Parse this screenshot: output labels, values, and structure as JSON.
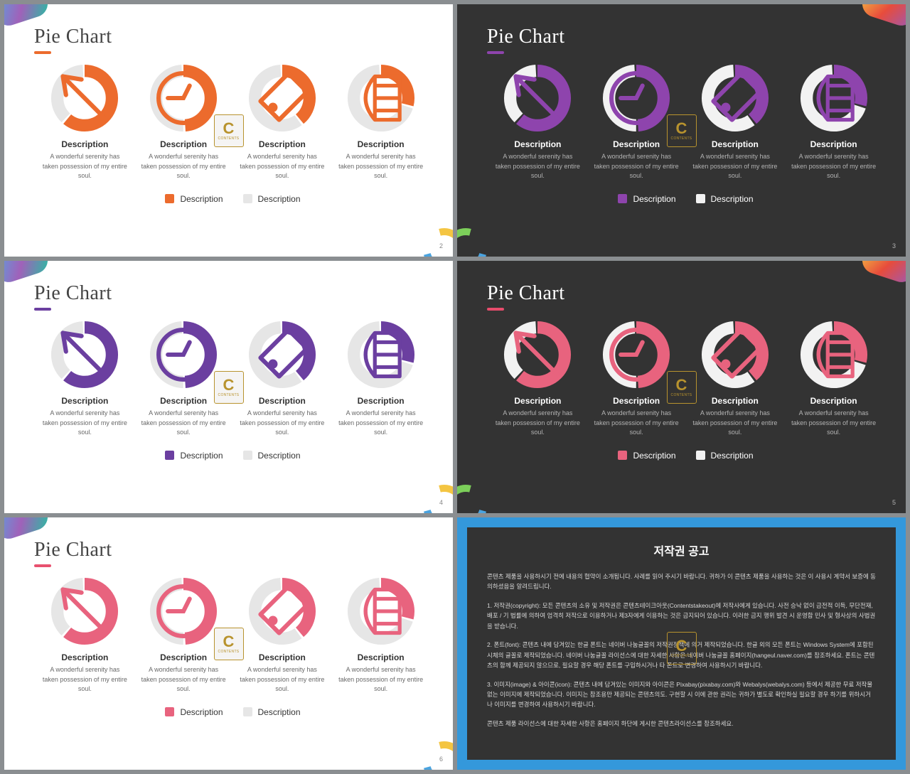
{
  "shared": {
    "title": "Pie Chart",
    "desc_title": "Description",
    "desc_body": "A wonderful serenity has taken possession of my entire soul.",
    "legend_a": "Description",
    "legend_b": "Description",
    "watermark_big": "C",
    "watermark_small": "CONTENTS"
  },
  "donut": {
    "r": 40,
    "stroke_width": 18,
    "gap_deg": 4,
    "fills": [
      0.62,
      0.5,
      0.4,
      0.3
    ],
    "icons": [
      "arrow",
      "clock",
      "tag",
      "store"
    ]
  },
  "slides": [
    {
      "bg": "light",
      "page": "2",
      "accent": "#ec6b2d",
      "primary": "#ec6b2d",
      "secondary": "#e6e6e6",
      "icon_color": "#ec6b2d",
      "ribbons": [
        "tl",
        "br"
      ]
    },
    {
      "bg": "dark",
      "page": "3",
      "accent": "#8e44ad",
      "primary": "#8e44ad",
      "secondary": "#f2f2f2",
      "icon_color": "#8e44ad",
      "ribbons": [
        "tr",
        "bl"
      ]
    },
    {
      "bg": "light",
      "page": "4",
      "accent": "#6b3fa0",
      "primary": "#6b3fa0",
      "secondary": "#e6e6e6",
      "icon_color": "#6b3fa0",
      "ribbons": [
        "tl",
        "br"
      ]
    },
    {
      "bg": "dark",
      "page": "5",
      "accent": "#e74c6c",
      "primary": "#e8637e",
      "secondary": "#f2f2f2",
      "icon_color": "#e8637e",
      "ribbons": [
        "tr",
        "bl"
      ]
    },
    {
      "bg": "light",
      "page": "6",
      "accent": "#e8516f",
      "primary": "#e8637e",
      "secondary": "#e6e6e6",
      "icon_color": "#e8637e",
      "ribbons": [
        "tl",
        "br"
      ]
    }
  ],
  "copyright": {
    "heading": "저작권 공고",
    "paras": [
      "콘텐츠 제품을 사용하시기 전에 내용의 협약이 소개됩니다. 사례를 읽어 주시기 바랍니다. 귀하가 이 콘텐츠 제품을 사용하는 것은 이 사용시 계약서 보증에 동의하셨음을 알려드립니다.",
      "1. 저작권(copyright): 모든 콘텐츠의 소유 및 저작권은 콘텐츠테이크아웃(Contentstakeout)에 저작사에게 있습니다. 사전 승낙 없이 금전적 이득, 무단전재, 배포 / 기 법률에 의하여 엄격히 저작으로 이용하거나 제3자에게 이용하는 것은 금지되어 있습니다. 이러한 금지 행위 발견 시 운영함 민사 및 형사상의 사법권을 받습니다.",
      "2. 폰트(font): 콘텐츠 내에 담겨있는 한글 폰트는 네이버 나눔글꼴의 저작권정책에 의거 제작되었습니다. 한글 외의 모든 폰트는 Windows System에 포함된 시체의 글꼴로 제작되었습니다. 네이버 나눔글꼴 라이선스에 대한 자세한 사항은 네이버 나눔글꼴 홈페이지(hangeul.naver.com)를 참조하세요. 폰트는 콘텐츠의 함께 제공되지 않으므로, 필요할 경우 해당 폰트를 구입하시거나 타 폰트로 변경하여 사용하시기 바랍니다.",
      "3. 이미지(image) & 아이콘(icon): 콘텐츠 내에 담겨있는 이미지와 아이콘은 Pixabay(pixabay.com)와 Webalys(webalys.com) 등에서 제공한 무료 저작물 없는 이미지에 제작되었습니다. 이미지는 참조용만 제공되는 콘텐츠의도. 구현할 시 이에 관한 권리는 귀하가 별도로 확인하실 필요할 경우 하기를 위하시거나 이미지를 변경하여 사용하시기 바랍니다.",
      "콘텐츠 제품 라이선스에 대한 자세한 사항은 홈페이지 하단에 게시한 콘텐츠라이선스를 참조하세요."
    ]
  }
}
